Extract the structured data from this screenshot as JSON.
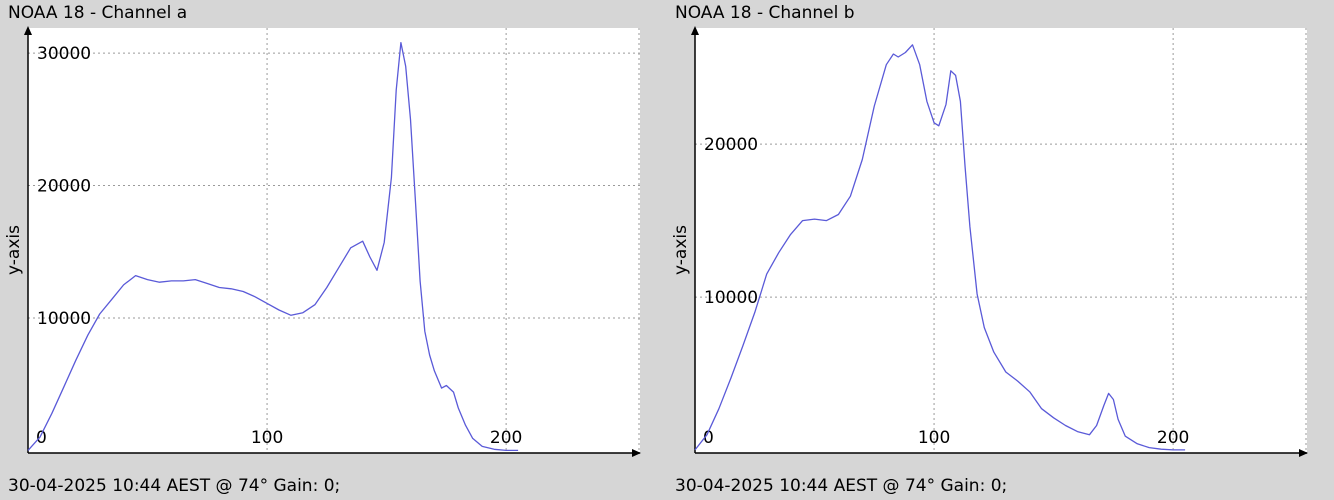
{
  "colors": {
    "background": "#d6d6d6",
    "plot_background": "#ffffff",
    "series": "#5a5ad8",
    "grid": "#9a9a9a"
  },
  "chart_data": [
    {
      "type": "line",
      "title": "NOAA 18 - Channel a",
      "footer": "30-04-2025 10:44 AEST @ 74° Gain: 0;",
      "xlabel": "",
      "ylabel": "y-axis",
      "xlim": [
        0,
        256
      ],
      "ylim": [
        -200,
        31900
      ],
      "xticks": [
        0,
        100,
        200
      ],
      "yticks": [
        10000,
        20000,
        30000
      ],
      "grid": true,
      "series": [
        {
          "x": [
            0,
            5,
            10,
            15,
            20,
            25,
            30,
            35,
            40,
            45,
            50,
            55,
            60,
            65,
            70,
            75,
            80,
            85,
            90,
            95,
            100,
            105,
            110,
            115,
            120,
            125,
            130,
            135,
            140,
            143,
            146,
            149,
            152,
            154,
            156,
            158,
            160,
            162,
            164,
            166,
            168,
            170,
            173,
            175,
            178,
            180,
            183,
            186,
            190,
            195,
            200,
            205
          ],
          "y": [
            0,
            1000,
            2800,
            4800,
            6800,
            8700,
            10300,
            11400,
            12500,
            13200,
            12900,
            12700,
            12800,
            12800,
            12900,
            12600,
            12300,
            12200,
            12000,
            11600,
            11100,
            10600,
            10200,
            10400,
            11000,
            12300,
            13800,
            15300,
            15800,
            14600,
            13600,
            15700,
            20600,
            27200,
            30800,
            29000,
            25000,
            19000,
            12800,
            9000,
            7200,
            6000,
            4700,
            4900,
            4400,
            3200,
            1900,
            900,
            300,
            80,
            0,
            0
          ]
        }
      ]
    },
    {
      "type": "line",
      "title": "NOAA 18 - Channel b",
      "footer": "30-04-2025 10:44 AEST @ 74° Gain: 0;",
      "xlabel": "",
      "ylabel": "y-axis",
      "xlim": [
        0,
        256
      ],
      "ylim": [
        -200,
        27600
      ],
      "xticks": [
        0,
        100,
        200
      ],
      "yticks": [
        10000,
        20000
      ],
      "grid": true,
      "series": [
        {
          "x": [
            0,
            5,
            10,
            15,
            20,
            25,
            30,
            35,
            40,
            45,
            50,
            55,
            60,
            65,
            70,
            75,
            80,
            83,
            85,
            88,
            91,
            94,
            97,
            100,
            102,
            105,
            107,
            109,
            111,
            113,
            115,
            118,
            121,
            125,
            130,
            135,
            140,
            145,
            150,
            155,
            160,
            165,
            168,
            171,
            173,
            175,
            177,
            180,
            185,
            190,
            195,
            200,
            205
          ],
          "y": [
            0,
            1000,
            2700,
            4700,
            6800,
            9000,
            11500,
            12900,
            14100,
            15000,
            15100,
            15000,
            15400,
            16600,
            19000,
            22500,
            25200,
            25900,
            25700,
            26000,
            26500,
            25200,
            22800,
            21400,
            21200,
            22600,
            24800,
            24500,
            22800,
            18500,
            14600,
            10200,
            8000,
            6400,
            5100,
            4500,
            3800,
            2700,
            2100,
            1600,
            1200,
            1000,
            1600,
            2900,
            3700,
            3300,
            2000,
            900,
            400,
            150,
            50,
            0,
            0
          ]
        }
      ]
    }
  ]
}
